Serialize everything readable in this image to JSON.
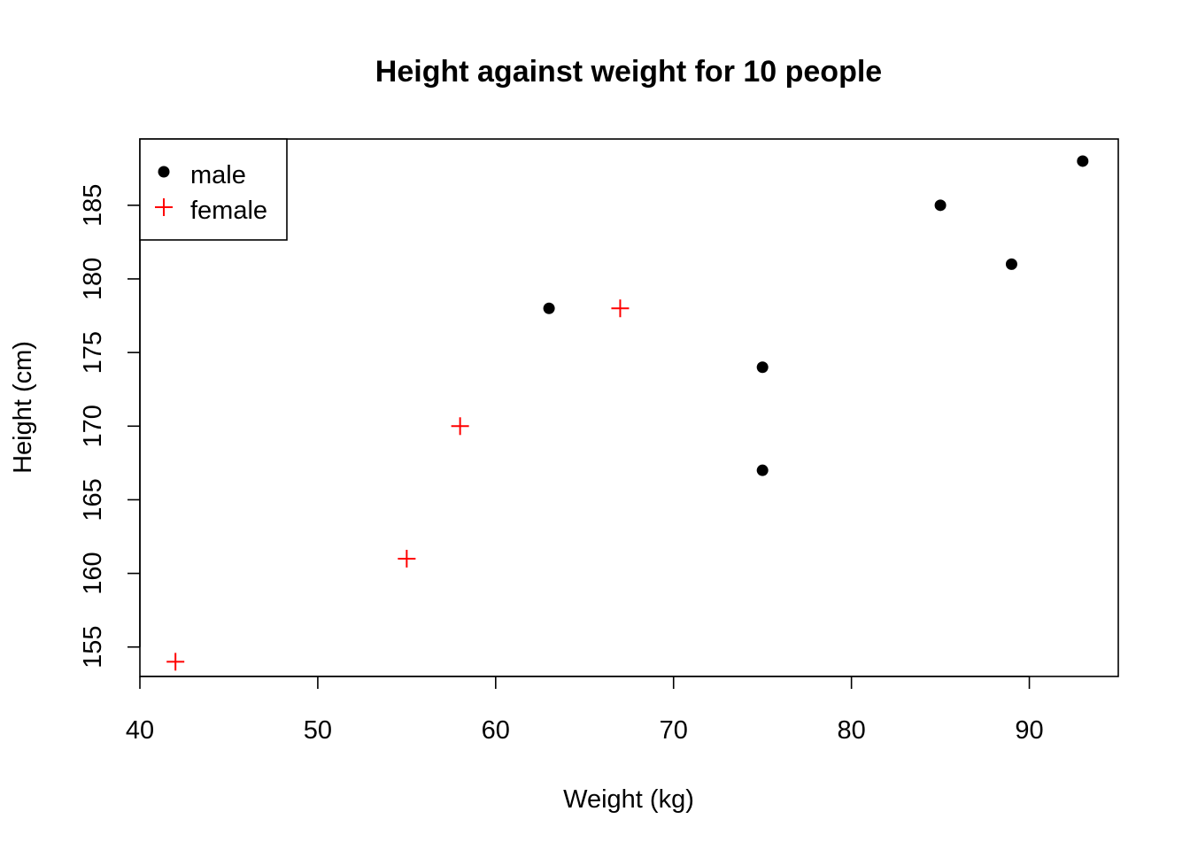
{
  "chart_data": {
    "type": "scatter",
    "title": "Height against weight for 10 people",
    "xlabel": "Weight (kg)",
    "ylabel": "Height (cm)",
    "xlim": [
      40,
      95
    ],
    "ylim": [
      153,
      189.5
    ],
    "xticks": [
      40,
      50,
      60,
      70,
      80,
      90
    ],
    "yticks": [
      155,
      160,
      165,
      170,
      175,
      180,
      185
    ],
    "grid": false,
    "legend_position": "top-left",
    "series": [
      {
        "name": "male",
        "color": "#000000",
        "marker": "filled-circle",
        "points": [
          {
            "x": 63,
            "y": 178
          },
          {
            "x": 75,
            "y": 174
          },
          {
            "x": 75,
            "y": 167
          },
          {
            "x": 85,
            "y": 185
          },
          {
            "x": 89,
            "y": 181
          },
          {
            "x": 93,
            "y": 188
          }
        ]
      },
      {
        "name": "female",
        "color": "#ff0000",
        "marker": "plus",
        "points": [
          {
            "x": 42,
            "y": 154
          },
          {
            "x": 55,
            "y": 161
          },
          {
            "x": 58,
            "y": 170
          },
          {
            "x": 67,
            "y": 178
          }
        ]
      }
    ]
  }
}
